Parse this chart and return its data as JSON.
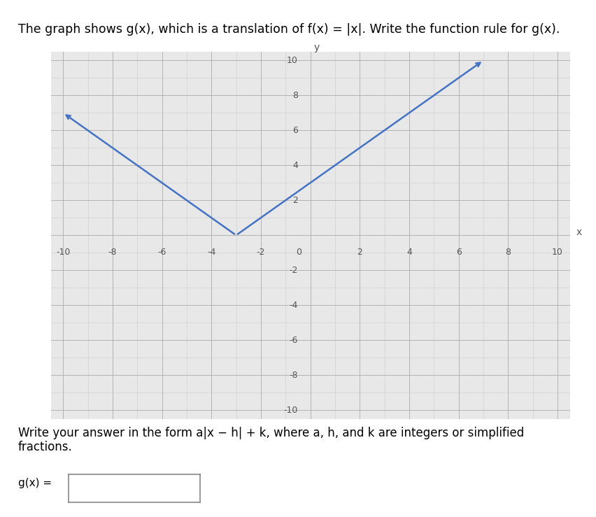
{
  "title": "The graph shows g(x), which is a translation of f(x) = |x|. Write the function rule for g(x).",
  "subtitle": "Write your answer in the form a|x − h| + k, where a, h, and k are integers or simplified\nfractions.",
  "answer_label": "g(x) =",
  "xlim": [
    -10,
    10
  ],
  "ylim": [
    -10,
    10
  ],
  "xticks": [
    -10,
    -8,
    -6,
    -4,
    -2,
    0,
    2,
    4,
    6,
    8,
    10
  ],
  "yticks": [
    -10,
    -8,
    -6,
    -4,
    -2,
    0,
    2,
    4,
    6,
    8,
    10
  ],
  "vertex_x": -3,
  "vertex_y": 0,
  "a": 1,
  "line_color": "#4472C4",
  "line_width": 1.8,
  "grid_color_minor": "#CCCCCC",
  "grid_color_major": "#AAAAAA",
  "plot_bg_color": "#E8E8E8",
  "outer_bg_color": "#F0F0F0",
  "page_bg_color": "#FFFFFF",
  "axis_color": "#555555",
  "text_color": "#000000",
  "font_size_title": 12.5,
  "font_size_tick": 9,
  "font_size_axislabel": 10,
  "font_size_answer": 11
}
